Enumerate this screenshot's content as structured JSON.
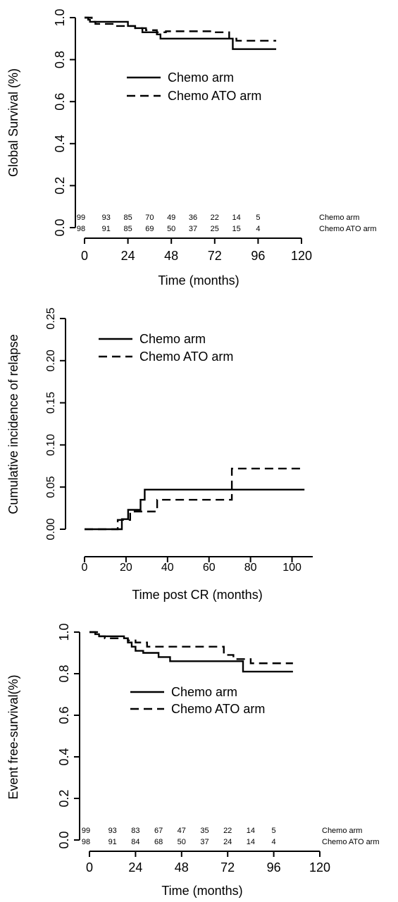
{
  "chart_data": [
    {
      "type": "line",
      "ylabel": "Global Survival (%)",
      "xlabel": "Time (months)",
      "xlim": [
        0,
        120
      ],
      "ylim": [
        0,
        1
      ],
      "xticks": [
        "0",
        "24",
        "48",
        "72",
        "96",
        "120"
      ],
      "yticks": [
        "0.0",
        "0.2",
        "0.4",
        "0.6",
        "0.8",
        "1.0"
      ],
      "legend_position": "upper-middle",
      "series": [
        {
          "name": "Chemo arm",
          "style": "solid",
          "x": [
            0,
            2,
            3,
            24,
            28,
            32,
            40,
            42,
            82,
            106
          ],
          "y": [
            1.0,
            0.99,
            0.98,
            0.96,
            0.95,
            0.93,
            0.92,
            0.9,
            0.85,
            0.85
          ]
        },
        {
          "name": "Chemo ATO arm",
          "style": "dashed",
          "x": [
            0,
            4,
            6,
            18,
            28,
            34,
            40,
            45,
            70,
            80,
            84,
            106
          ],
          "y": [
            1.0,
            0.98,
            0.97,
            0.96,
            0.95,
            0.94,
            0.93,
            0.935,
            0.93,
            0.9,
            0.89,
            0.89
          ]
        }
      ],
      "at_risk": {
        "rows": [
          {
            "label": "Chemo arm",
            "values": [
              "99",
              "93",
              "85",
              "70",
              "49",
              "36",
              "22",
              "14",
              "5"
            ]
          },
          {
            "label": "Chemo ATO arm",
            "values": [
              "98",
              "91",
              "85",
              "69",
              "50",
              "37",
              "25",
              "15",
              "4"
            ]
          }
        ]
      }
    },
    {
      "type": "line",
      "ylabel": "Cumulative incidence of relapse",
      "xlabel": "Time post CR (months)",
      "xlim": [
        0,
        110
      ],
      "ylim": [
        0,
        0.25
      ],
      "xticks": [
        "0",
        "20",
        "40",
        "60",
        "80",
        "100"
      ],
      "yticks": [
        "0.00",
        "0.05",
        "0.10",
        "0.15",
        "0.20",
        "0.25"
      ],
      "legend_position": "top-left",
      "series": [
        {
          "name": "Chemo arm",
          "style": "solid",
          "x": [
            0,
            18,
            21,
            25,
            27,
            29,
            106
          ],
          "y": [
            0,
            0.012,
            0.023,
            0.023,
            0.035,
            0.047,
            0.047
          ]
        },
        {
          "name": "Chemo ATO arm",
          "style": "dashed",
          "x": [
            0,
            16,
            22,
            28,
            35,
            70,
            71,
            106
          ],
          "y": [
            0,
            0.011,
            0.021,
            0.021,
            0.035,
            0.035,
            0.072,
            0.072
          ]
        }
      ]
    },
    {
      "type": "line",
      "ylabel": "Event free-survival(%)",
      "xlabel": "Time (months)",
      "xlim": [
        0,
        120
      ],
      "ylim": [
        0,
        1
      ],
      "xticks": [
        "0",
        "24",
        "48",
        "72",
        "96",
        "120"
      ],
      "yticks": [
        "0.0",
        "0.2",
        "0.4",
        "0.6",
        "0.8",
        "1.0"
      ],
      "legend_position": "upper-middle",
      "series": [
        {
          "name": "Chemo arm",
          "style": "solid",
          "x": [
            0,
            3,
            5,
            18,
            20,
            22,
            24,
            28,
            36,
            42,
            80,
            106
          ],
          "y": [
            1.0,
            0.99,
            0.98,
            0.97,
            0.95,
            0.93,
            0.91,
            0.9,
            0.88,
            0.86,
            0.81,
            0.81
          ]
        },
        {
          "name": "Chemo ATO arm",
          "style": "dashed",
          "x": [
            0,
            4,
            8,
            20,
            24,
            30,
            70,
            75,
            84,
            106
          ],
          "y": [
            1.0,
            0.98,
            0.97,
            0.96,
            0.95,
            0.93,
            0.89,
            0.87,
            0.85,
            0.85
          ]
        }
      ],
      "at_risk": {
        "rows": [
          {
            "label": "Chemo arm",
            "values": [
              "99",
              "93",
              "83",
              "67",
              "47",
              "35",
              "22",
              "14",
              "5"
            ]
          },
          {
            "label": "Chemo ATO arm",
            "values": [
              "98",
              "91",
              "84",
              "68",
              "50",
              "37",
              "24",
              "14",
              "4"
            ]
          }
        ]
      }
    }
  ]
}
